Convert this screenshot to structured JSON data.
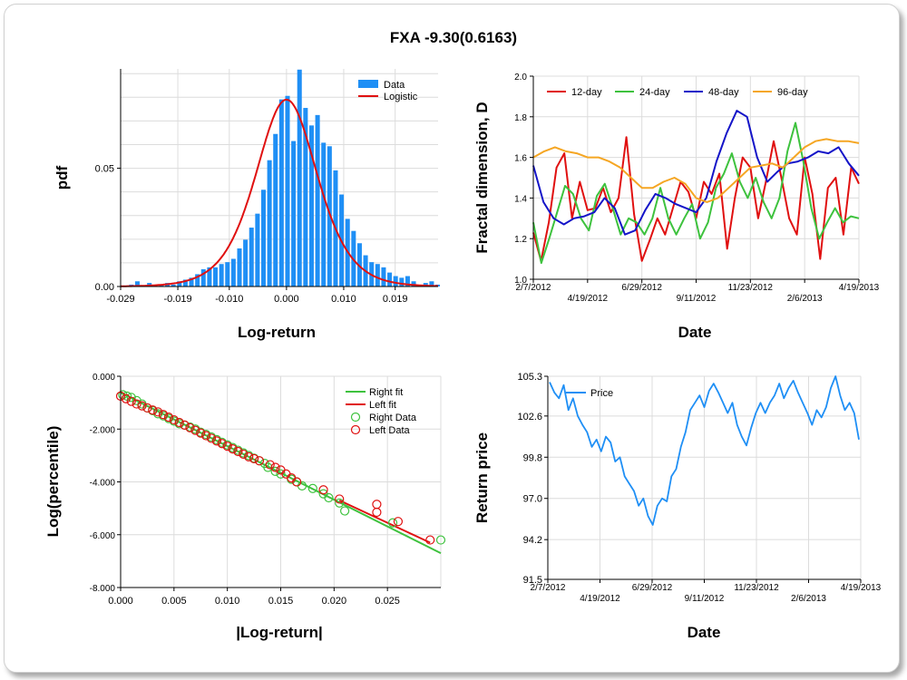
{
  "title": "FXA -9.30(0.6163)",
  "chart_data": [
    {
      "id": "hist",
      "type": "bar",
      "subtype": "histogram with fitted curve",
      "xlabel": "Log-return",
      "ylabel": "pdf",
      "xlim": [
        -0.029,
        0.0265
      ],
      "ylim": [
        0,
        0.092
      ],
      "xticks": [
        "-0.029",
        "-0.019",
        "-0.010",
        "0.000",
        "0.010",
        "0.019"
      ],
      "xtick_values": [
        -0.029,
        -0.019,
        -0.01,
        0.0,
        0.01,
        0.019
      ],
      "yticks": [
        "0.00",
        "0.05"
      ],
      "ytick_values": [
        0.0,
        0.05
      ],
      "grid": true,
      "legend_position": "top-right",
      "bin_start": -0.0287,
      "bin_width": 0.00105,
      "series": [
        {
          "name": "Data",
          "kind": "bars",
          "color": "#1f8ff5",
          "values": [
            0,
            0.0008,
            0.0022,
            0,
            0.0015,
            0,
            0.0008,
            0.0015,
            0.0008,
            0.0022,
            0.0029,
            0.0037,
            0.0052,
            0.0073,
            0.0081,
            0.0081,
            0.0095,
            0.0103,
            0.0117,
            0.0161,
            0.0198,
            0.0249,
            0.0308,
            0.0409,
            0.0534,
            0.0645,
            0.0791,
            0.0806,
            0.0615,
            0.0917,
            0.0755,
            0.0681,
            0.0725,
            0.0608,
            0.0593,
            0.0491,
            0.0389,
            0.0286,
            0.0235,
            0.0183,
            0.0132,
            0.0103,
            0.0095,
            0.0081,
            0.0059,
            0.0044,
            0.0037,
            0.0044,
            0.0022,
            0,
            0.0015,
            0.0022,
            0.0008
          ]
        },
        {
          "name": "Logistic",
          "kind": "curve",
          "color": "#e01010",
          "location": 0.0,
          "peak": 0.079,
          "scale": 0.0036
        }
      ]
    },
    {
      "id": "fractal",
      "type": "line",
      "xlabel": "Date",
      "ylabel": "Fractal dimension, D",
      "ylim": [
        1.0,
        2.0
      ],
      "yticks": [
        "1.0",
        "1.2",
        "1.4",
        "1.6",
        "1.8",
        "2.0"
      ],
      "xticks_top_row": [
        "2/7/2012",
        "6/29/2012",
        "11/23/2012",
        "4/19/2013"
      ],
      "xticks_bottom_row": [
        "4/19/2012",
        "9/11/2012",
        "2/6/2013"
      ],
      "grid": true,
      "legend_position": "top",
      "series": [
        {
          "name": "12-day",
          "color": "#e01010",
          "values": [
            1.23,
            1.09,
            1.28,
            1.55,
            1.62,
            1.3,
            1.48,
            1.34,
            1.35,
            1.45,
            1.33,
            1.4,
            1.7,
            1.32,
            1.09,
            1.19,
            1.3,
            1.22,
            1.35,
            1.48,
            1.43,
            1.3,
            1.48,
            1.42,
            1.52,
            1.15,
            1.4,
            1.6,
            1.55,
            1.3,
            1.48,
            1.68,
            1.5,
            1.3,
            1.22,
            1.6,
            1.42,
            1.1,
            1.45,
            1.5,
            1.22,
            1.55,
            1.47
          ]
        },
        {
          "name": "24-day",
          "color": "#3ec23e",
          "values": [
            1.28,
            1.08,
            1.2,
            1.33,
            1.46,
            1.42,
            1.3,
            1.24,
            1.41,
            1.47,
            1.35,
            1.22,
            1.3,
            1.28,
            1.22,
            1.3,
            1.45,
            1.3,
            1.22,
            1.3,
            1.37,
            1.2,
            1.28,
            1.45,
            1.52,
            1.62,
            1.48,
            1.4,
            1.5,
            1.38,
            1.3,
            1.4,
            1.63,
            1.77,
            1.58,
            1.35,
            1.2,
            1.28,
            1.35,
            1.28,
            1.31,
            1.3
          ]
        },
        {
          "name": "48-day",
          "color": "#1414c8",
          "values": [
            1.56,
            1.38,
            1.3,
            1.27,
            1.3,
            1.31,
            1.33,
            1.4,
            1.35,
            1.22,
            1.24,
            1.34,
            1.42,
            1.4,
            1.37,
            1.35,
            1.33,
            1.4,
            1.58,
            1.72,
            1.83,
            1.8,
            1.6,
            1.48,
            1.53,
            1.57,
            1.58,
            1.6,
            1.63,
            1.62,
            1.65,
            1.57,
            1.51
          ]
        },
        {
          "name": "96-day",
          "color": "#f5a623",
          "values": [
            1.6,
            1.63,
            1.65,
            1.63,
            1.62,
            1.6,
            1.6,
            1.58,
            1.55,
            1.5,
            1.45,
            1.45,
            1.48,
            1.5,
            1.47,
            1.4,
            1.38,
            1.4,
            1.45,
            1.5,
            1.55,
            1.56,
            1.57,
            1.55,
            1.6,
            1.65,
            1.68,
            1.69,
            1.68,
            1.68,
            1.67
          ]
        }
      ]
    },
    {
      "id": "tails",
      "type": "scatter",
      "xlabel": "|Log-return|",
      "ylabel": "Log(percentile)",
      "xlim": [
        0.0,
        0.03
      ],
      "ylim": [
        -8.0,
        0.0
      ],
      "xticks": [
        "0.000",
        "0.005",
        "0.010",
        "0.015",
        "0.020",
        "0.025"
      ],
      "xtick_values": [
        0.0,
        0.005,
        0.01,
        0.015,
        0.02,
        0.025
      ],
      "yticks": [
        "0.000",
        "-2.000",
        "-4.000",
        "-6.000",
        "-8.000"
      ],
      "ytick_values": [
        0.0,
        -2.0,
        -4.0,
        -6.0,
        -8.0
      ],
      "grid": true,
      "legend_position": "top-right",
      "series": [
        {
          "name": "Right fit",
          "kind": "line",
          "color": "#3ec23e",
          "x": [
            0.0,
            0.03
          ],
          "y": [
            -0.62,
            -6.7
          ]
        },
        {
          "name": "Left fit",
          "kind": "line",
          "color": "#e01010",
          "x": [
            0.0205,
            0.029
          ],
          "y": [
            -4.7,
            -6.3
          ]
        },
        {
          "name": "Right Data",
          "kind": "markers",
          "color": "#3ec23e",
          "x": [
            0.0002,
            0.0006,
            0.001,
            0.0015,
            0.002,
            0.0025,
            0.003,
            0.0035,
            0.004,
            0.0045,
            0.005,
            0.0055,
            0.006,
            0.0065,
            0.007,
            0.0075,
            0.008,
            0.0085,
            0.009,
            0.0095,
            0.01,
            0.0105,
            0.011,
            0.0115,
            0.012,
            0.0125,
            0.013,
            0.0135,
            0.0138,
            0.0145,
            0.015,
            0.016,
            0.0165,
            0.017,
            0.018,
            0.019,
            0.0195,
            0.0205,
            0.021,
            0.0255,
            0.03
          ],
          "y": [
            -0.7,
            -0.75,
            -0.8,
            -0.92,
            -1.05,
            -1.2,
            -1.3,
            -1.42,
            -1.5,
            -1.6,
            -1.7,
            -1.8,
            -1.85,
            -1.92,
            -2.0,
            -2.12,
            -2.2,
            -2.3,
            -2.4,
            -2.5,
            -2.6,
            -2.7,
            -2.8,
            -2.9,
            -3.0,
            -3.1,
            -3.2,
            -3.3,
            -3.45,
            -3.6,
            -3.7,
            -3.9,
            -4.0,
            -4.15,
            -4.25,
            -4.45,
            -4.6,
            -4.8,
            -5.1,
            -5.55,
            -6.2
          ]
        },
        {
          "name": "Left Data",
          "kind": "markers",
          "color": "#e01010",
          "x": [
            0.0,
            0.0005,
            0.001,
            0.0015,
            0.002,
            0.0025,
            0.003,
            0.0035,
            0.004,
            0.0045,
            0.005,
            0.0055,
            0.006,
            0.0065,
            0.007,
            0.0075,
            0.008,
            0.0085,
            0.009,
            0.0095,
            0.01,
            0.0105,
            0.011,
            0.0115,
            0.012,
            0.0125,
            0.013,
            0.014,
            0.0145,
            0.015,
            0.0155,
            0.016,
            0.0165,
            0.019,
            0.0205,
            0.024,
            0.024,
            0.026,
            0.029
          ],
          "y": [
            -0.75,
            -0.85,
            -0.95,
            -1.05,
            -1.12,
            -1.2,
            -1.28,
            -1.35,
            -1.45,
            -1.55,
            -1.65,
            -1.75,
            -1.85,
            -1.95,
            -2.05,
            -2.15,
            -2.25,
            -2.35,
            -2.45,
            -2.55,
            -2.65,
            -2.75,
            -2.85,
            -2.95,
            -3.05,
            -3.12,
            -3.2,
            -3.35,
            -3.45,
            -3.55,
            -3.7,
            -3.85,
            -4.0,
            -4.3,
            -4.65,
            -4.85,
            -5.15,
            -5.5,
            -6.2
          ]
        }
      ]
    },
    {
      "id": "price",
      "type": "line",
      "xlabel": "Date",
      "ylabel": "Return price",
      "ylim": [
        91.5,
        105.3
      ],
      "yticks": [
        "105.3",
        "102.6",
        "99.8",
        "97.0",
        "94.2",
        "91.5"
      ],
      "xticks_top_row": [
        "2/7/2012",
        "6/29/2012",
        "11/23/2012",
        "4/19/2013"
      ],
      "xticks_bottom_row": [
        "4/19/2012",
        "9/11/2012",
        "2/6/2013"
      ],
      "grid": true,
      "legend_position": "top-left",
      "series": [
        {
          "name": "Price",
          "color": "#1f8ff5",
          "values": [
            104.9,
            104.2,
            103.8,
            104.7,
            103.0,
            103.8,
            102.6,
            102.0,
            101.5,
            100.5,
            101.0,
            100.2,
            101.2,
            100.8,
            99.5,
            99.8,
            98.5,
            98.0,
            97.5,
            96.5,
            97.0,
            95.8,
            95.2,
            96.5,
            97.0,
            96.8,
            98.5,
            99.0,
            100.5,
            101.5,
            103.0,
            103.5,
            104.0,
            103.2,
            104.3,
            104.8,
            104.2,
            103.5,
            102.8,
            103.5,
            102.0,
            101.2,
            100.6,
            101.8,
            102.8,
            103.5,
            102.8,
            103.5,
            104.0,
            104.8,
            103.8,
            104.5,
            105.0,
            104.2,
            103.5,
            102.8,
            102.0,
            103.0,
            102.5,
            103.2,
            104.5,
            105.3,
            104.0,
            103.0,
            103.5,
            102.8,
            101.0
          ]
        }
      ]
    }
  ]
}
